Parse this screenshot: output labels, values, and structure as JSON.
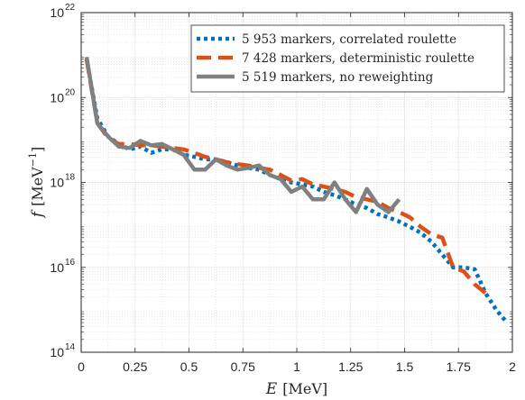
{
  "chart_data": {
    "type": "line",
    "xlabel_var": "E",
    "xlabel_unit": "[MeV]",
    "ylabel_var": "f",
    "ylabel_unit_base": "[MeV",
    "ylabel_unit_exp": "−1",
    "ylabel_unit_close": "]",
    "xlim": [
      0,
      2
    ],
    "ylim": [
      100000000000000.0,
      1e+22
    ],
    "yscale": "log",
    "grid": true,
    "minor_grid": true,
    "legend_position": "top-right",
    "x_ticks": [
      0,
      0.25,
      0.5,
      0.75,
      1,
      1.25,
      1.5,
      1.75,
      2
    ],
    "x_tick_labels": [
      "0",
      "0.25",
      "0.5",
      "0.75",
      "1",
      "1.25",
      "1.5",
      "1.75",
      "2"
    ],
    "y_ticks": [
      {
        "value": 100000000000000.0,
        "base": "10",
        "exp": "14"
      },
      {
        "value": 1e+16,
        "base": "10",
        "exp": "16"
      },
      {
        "value": 1e+18,
        "base": "10",
        "exp": "18"
      },
      {
        "value": 1e+20,
        "base": "10",
        "exp": "20"
      },
      {
        "value": 1e+22,
        "base": "10",
        "exp": "22"
      }
    ],
    "series": [
      {
        "name": "5 953 markers, correlated roulette",
        "color": "#0072BD",
        "style": "dotted",
        "x": [
          0.025,
          0.075,
          0.125,
          0.175,
          0.225,
          0.275,
          0.325,
          0.375,
          0.425,
          0.475,
          0.525,
          0.575,
          0.625,
          0.675,
          0.725,
          0.775,
          0.825,
          0.875,
          0.925,
          0.975,
          1.025,
          1.075,
          1.125,
          1.175,
          1.225,
          1.275,
          1.325,
          1.375,
          1.425,
          1.475,
          1.525,
          1.575,
          1.625,
          1.675,
          1.725,
          1.775,
          1.825,
          1.875,
          1.925,
          1.975
        ],
        "y": [
          8e+20,
          3.2e+19,
          1.2e+19,
          8e+18,
          6e+18,
          7e+18,
          5e+18,
          6e+18,
          6e+18,
          4.5e+18,
          4e+18,
          3.5e+18,
          3.5e+18,
          3e+18,
          2.5e+18,
          2.2e+18,
          2e+18,
          1.5e+18,
          1.2e+18,
          1e+18,
          9e+17,
          8e+17,
          6e+17,
          5e+17,
          4e+17,
          3e+17,
          2.5e+17,
          1.8e+17,
          1.5e+17,
          1.2e+17,
          9e+16,
          6.5e+16,
          4e+16,
          2e+16,
          1e+16,
          1e+16,
          9000000000000000.0,
          2500000000000000.0,
          1000000000000000.0,
          500000000000000.0
        ]
      },
      {
        "name": "7 428 markers, deterministic roulette",
        "color": "#D95319",
        "style": "dashed",
        "x": [
          0.025,
          0.075,
          0.125,
          0.175,
          0.225,
          0.275,
          0.325,
          0.375,
          0.425,
          0.475,
          0.525,
          0.575,
          0.625,
          0.675,
          0.725,
          0.775,
          0.825,
          0.875,
          0.925,
          0.975,
          1.025,
          1.075,
          1.125,
          1.175,
          1.225,
          1.275,
          1.325,
          1.375,
          1.425,
          1.475,
          1.525,
          1.575,
          1.625,
          1.675,
          1.725,
          1.775,
          1.825,
          1.875
        ],
        "y": [
          8e+20,
          2.5e+19,
          1.1e+19,
          8e+18,
          8e+18,
          7.5e+18,
          7.5e+18,
          7e+18,
          6.5e+18,
          6e+18,
          5e+18,
          4e+18,
          3.5e+18,
          3e+18,
          2.7e+18,
          2.5e+18,
          2.2e+18,
          2e+18,
          1.5e+18,
          1.1e+18,
          1.2e+18,
          9e+17,
          8e+17,
          7e+17,
          6e+17,
          4.5e+17,
          4e+17,
          3.5e+17,
          2.5e+17,
          2e+17,
          1.5e+17,
          9e+16,
          6e+16,
          5e+16,
          1e+16,
          8000000000000000.0,
          4000000000000000.0,
          2500000000000000.0
        ]
      },
      {
        "name": "5 519 markers, no reweighting",
        "color": "#808080",
        "style": "solid",
        "x": [
          0.025,
          0.075,
          0.125,
          0.175,
          0.225,
          0.275,
          0.325,
          0.375,
          0.425,
          0.475,
          0.525,
          0.575,
          0.625,
          0.675,
          0.725,
          0.775,
          0.825,
          0.875,
          0.925,
          0.975,
          1.025,
          1.075,
          1.125,
          1.175,
          1.225,
          1.275,
          1.325,
          1.375,
          1.425,
          1.475
        ],
        "y": [
          9e+20,
          2.5e+19,
          1.2e+19,
          7e+18,
          6.5e+18,
          9.5e+18,
          7.5e+18,
          8e+18,
          6e+18,
          4.5e+18,
          2e+18,
          2e+18,
          3.5e+18,
          2.5e+18,
          2e+18,
          2.2e+18,
          2.5e+18,
          1.5e+18,
          1.2e+18,
          6e+17,
          8e+17,
          4e+17,
          4e+17,
          1e+18,
          4e+17,
          2e+17,
          7e+17,
          3e+17,
          2e+17,
          4e+17
        ]
      }
    ]
  }
}
